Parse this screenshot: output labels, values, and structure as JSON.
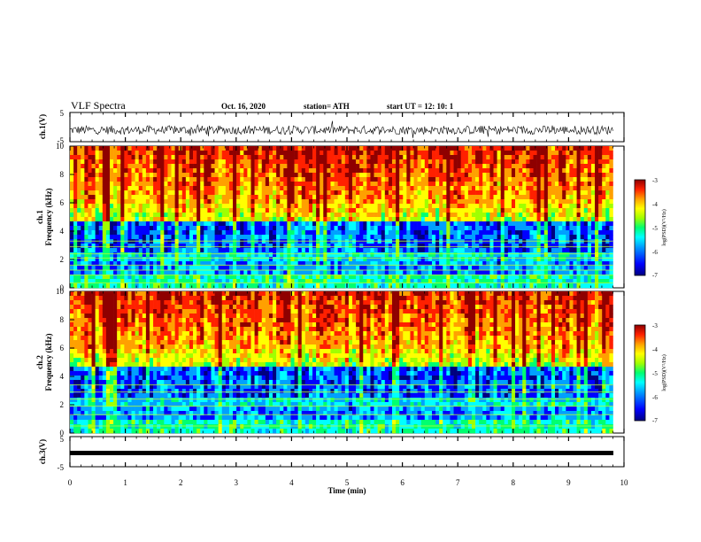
{
  "header": {
    "title": "VLF Spectra",
    "date": "Oct. 16, 2020",
    "station": "station= ATH",
    "start": "start  UT =   12: 10: 1"
  },
  "chart_data": [
    {
      "type": "line",
      "panel": "ch1-waveform",
      "ylabel": "ch.1(V)",
      "ytick_labels": [
        "5",
        "-5"
      ],
      "ylim": [
        -5,
        5
      ],
      "xlim": [
        0,
        10
      ],
      "description_of_values": "noisy waveform around -1 V with amplitude ~1.5 V",
      "approx_level": -1.0
    },
    {
      "type": "heatmap",
      "panel": "ch1-spectrogram",
      "ylabel": "ch.1\nFrequency (kHz)",
      "ylabel_lines": [
        "ch.1",
        "Frequency  (kHz)"
      ],
      "ytick_labels": [
        "0",
        "2",
        "4",
        "6",
        "8",
        "10"
      ],
      "ylim": [
        0,
        10
      ],
      "xlim": [
        0,
        10
      ],
      "colorbar": {
        "label": "log(PSD)(V²/Hz)",
        "tick_labels": [
          "-3",
          "-4",
          "-5",
          "-6",
          "-7"
        ],
        "range": [
          -7,
          -3
        ]
      },
      "colormap": [
        "#00007f",
        "#0000ff",
        "#00a0ff",
        "#00ffff",
        "#00ff70",
        "#a0ff00",
        "#ffff00",
        "#ffa000",
        "#ff2000",
        "#8f0000"
      ],
      "horizontal_lines_khz": [
        0.35,
        0.9,
        1.25,
        1.6,
        2.1,
        2.4,
        2.9,
        3.3
      ]
    },
    {
      "type": "heatmap",
      "panel": "ch2-spectrogram",
      "ylabel": "ch.2\nFrequency (kHz)",
      "ylabel_lines": [
        "ch.2",
        "Frequency  (kHz)"
      ],
      "ytick_labels": [
        "0",
        "2",
        "4",
        "6",
        "8",
        "10"
      ],
      "ylim": [
        0,
        10
      ],
      "xlim": [
        0,
        10
      ],
      "colorbar": {
        "label": "log(PSD)(V²/Hz)",
        "tick_labels": [
          "-3",
          "-4",
          "-5",
          "-6",
          "-7"
        ],
        "range": [
          -7,
          -3
        ]
      },
      "horizontal_lines_khz": [
        0.5,
        1.3,
        1.9,
        2.4,
        2.9,
        3.4
      ]
    },
    {
      "type": "line",
      "panel": "ch3-waveform",
      "ylabel": "ch.3(V)",
      "ytick_labels": [
        "5",
        "-5"
      ],
      "ylim": [
        -5,
        5
      ],
      "xlim": [
        0,
        10
      ],
      "approx_level": 0.3,
      "xlabel": "Time  (min)",
      "xtick_labels": [
        "0",
        "1",
        "2",
        "3",
        "4",
        "5",
        "6",
        "7",
        "8",
        "9",
        "10"
      ]
    }
  ]
}
